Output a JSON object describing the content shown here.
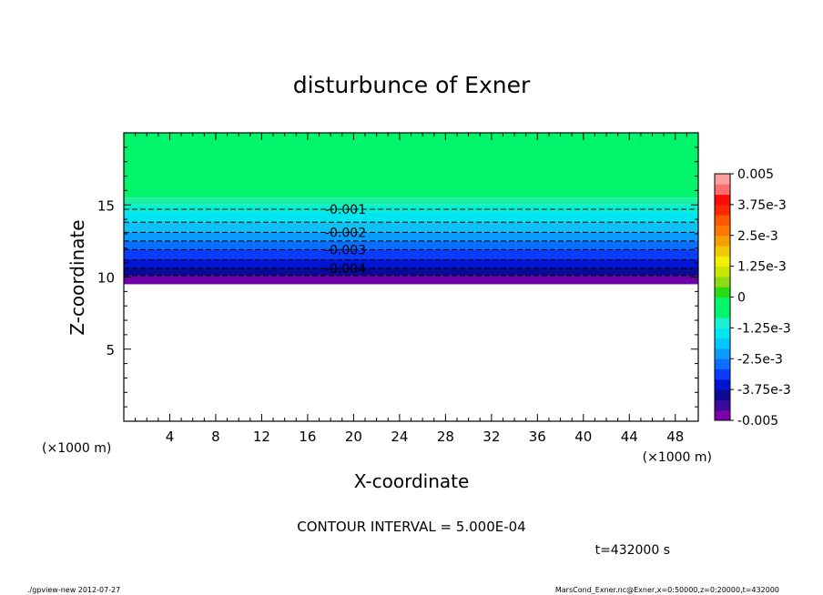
{
  "chart_data": {
    "type": "heatmap",
    "title": "disturbunce of Exner",
    "xlabel": "X-coordinate",
    "ylabel": "Z-coordinate",
    "x_unit_left": "(×1000 m)",
    "x_unit_right": "(×1000 m)",
    "xlim": [
      0,
      50
    ],
    "ylim": [
      0,
      20
    ],
    "x_ticks": [
      4,
      8,
      12,
      16,
      20,
      24,
      28,
      32,
      36,
      40,
      44,
      48
    ],
    "y_ticks": [
      5,
      10,
      15
    ],
    "contour_levels": [
      {
        "value": -0.001,
        "z": 14.7,
        "label": "-0.001"
      },
      {
        "value": -0.0015,
        "z": 13.8,
        "label": ""
      },
      {
        "value": -0.002,
        "z": 13.1,
        "label": "-0.002"
      },
      {
        "value": -0.0025,
        "z": 12.5,
        "label": ""
      },
      {
        "value": -0.003,
        "z": 11.9,
        "label": "-0.003"
      },
      {
        "value": -0.0035,
        "z": 11.2,
        "label": ""
      },
      {
        "value": -0.004,
        "z": 10.6,
        "label": "-0.004"
      },
      {
        "value": -0.0045,
        "z": 10.1,
        "label": ""
      }
    ],
    "field_bands": [
      {
        "z0": 15.5,
        "z1": 20.0,
        "color": "#00f56b"
      },
      {
        "z0": 15.0,
        "z1": 15.5,
        "color": "#19f0a6"
      },
      {
        "z0": 14.5,
        "z1": 15.0,
        "color": "#00f0d2"
      },
      {
        "z0": 13.8,
        "z1": 14.5,
        "color": "#00e5f0"
      },
      {
        "z0": 13.1,
        "z1": 13.8,
        "color": "#0fc2f5"
      },
      {
        "z0": 12.5,
        "z1": 13.1,
        "color": "#0a9bff"
      },
      {
        "z0": 11.9,
        "z1": 12.5,
        "color": "#0a6eff"
      },
      {
        "z0": 11.2,
        "z1": 11.9,
        "color": "#0a3cff"
      },
      {
        "z0": 10.6,
        "z1": 11.2,
        "color": "#0014d2"
      },
      {
        "z0": 10.1,
        "z1": 10.6,
        "color": "#0a0a96"
      },
      {
        "z0": 9.5,
        "z1": 10.1,
        "color": "#6e00aa"
      }
    ],
    "colorbar": {
      "min": -0.005,
      "max": 0.005,
      "tick_labels": [
        {
          "value": 0.005,
          "label": "0.005"
        },
        {
          "value": 0.00375,
          "label": "3.75e-3"
        },
        {
          "value": 0.0025,
          "label": "2.5e-3"
        },
        {
          "value": 0.00125,
          "label": "1.25e-3"
        },
        {
          "value": 0,
          "label": "0"
        },
        {
          "value": -0.00125,
          "label": "-1.25e-3"
        },
        {
          "value": -0.0025,
          "label": "-2.5e-3"
        },
        {
          "value": -0.00375,
          "label": "-3.75e-3"
        },
        {
          "value": -0.005,
          "label": "-0.005"
        }
      ],
      "colors": [
        "#7a00aa",
        "#3a0a9a",
        "#0a0a96",
        "#0014d2",
        "#0a3cff",
        "#0a6eff",
        "#0a9bff",
        "#00c8ff",
        "#00e5f0",
        "#19f0d2",
        "#00f56b",
        "#00f56b",
        "#2adc14",
        "#8cdc14",
        "#c8e600",
        "#f0f000",
        "#f0c800",
        "#f5a000",
        "#ff7800",
        "#ff5a00",
        "#ff2800",
        "#ff0a0a",
        "#ff6e6e",
        "#ffa0a0"
      ]
    },
    "contour_interval_text": "CONTOUR INTERVAL = 5.000E-04",
    "time_text": "t=432000 s"
  },
  "footer": {
    "left": "./gpview-new  2012-07-27",
    "right": "MarsCond_Exner.nc@Exner,x=0:50000,z=0:20000,t=432000"
  }
}
